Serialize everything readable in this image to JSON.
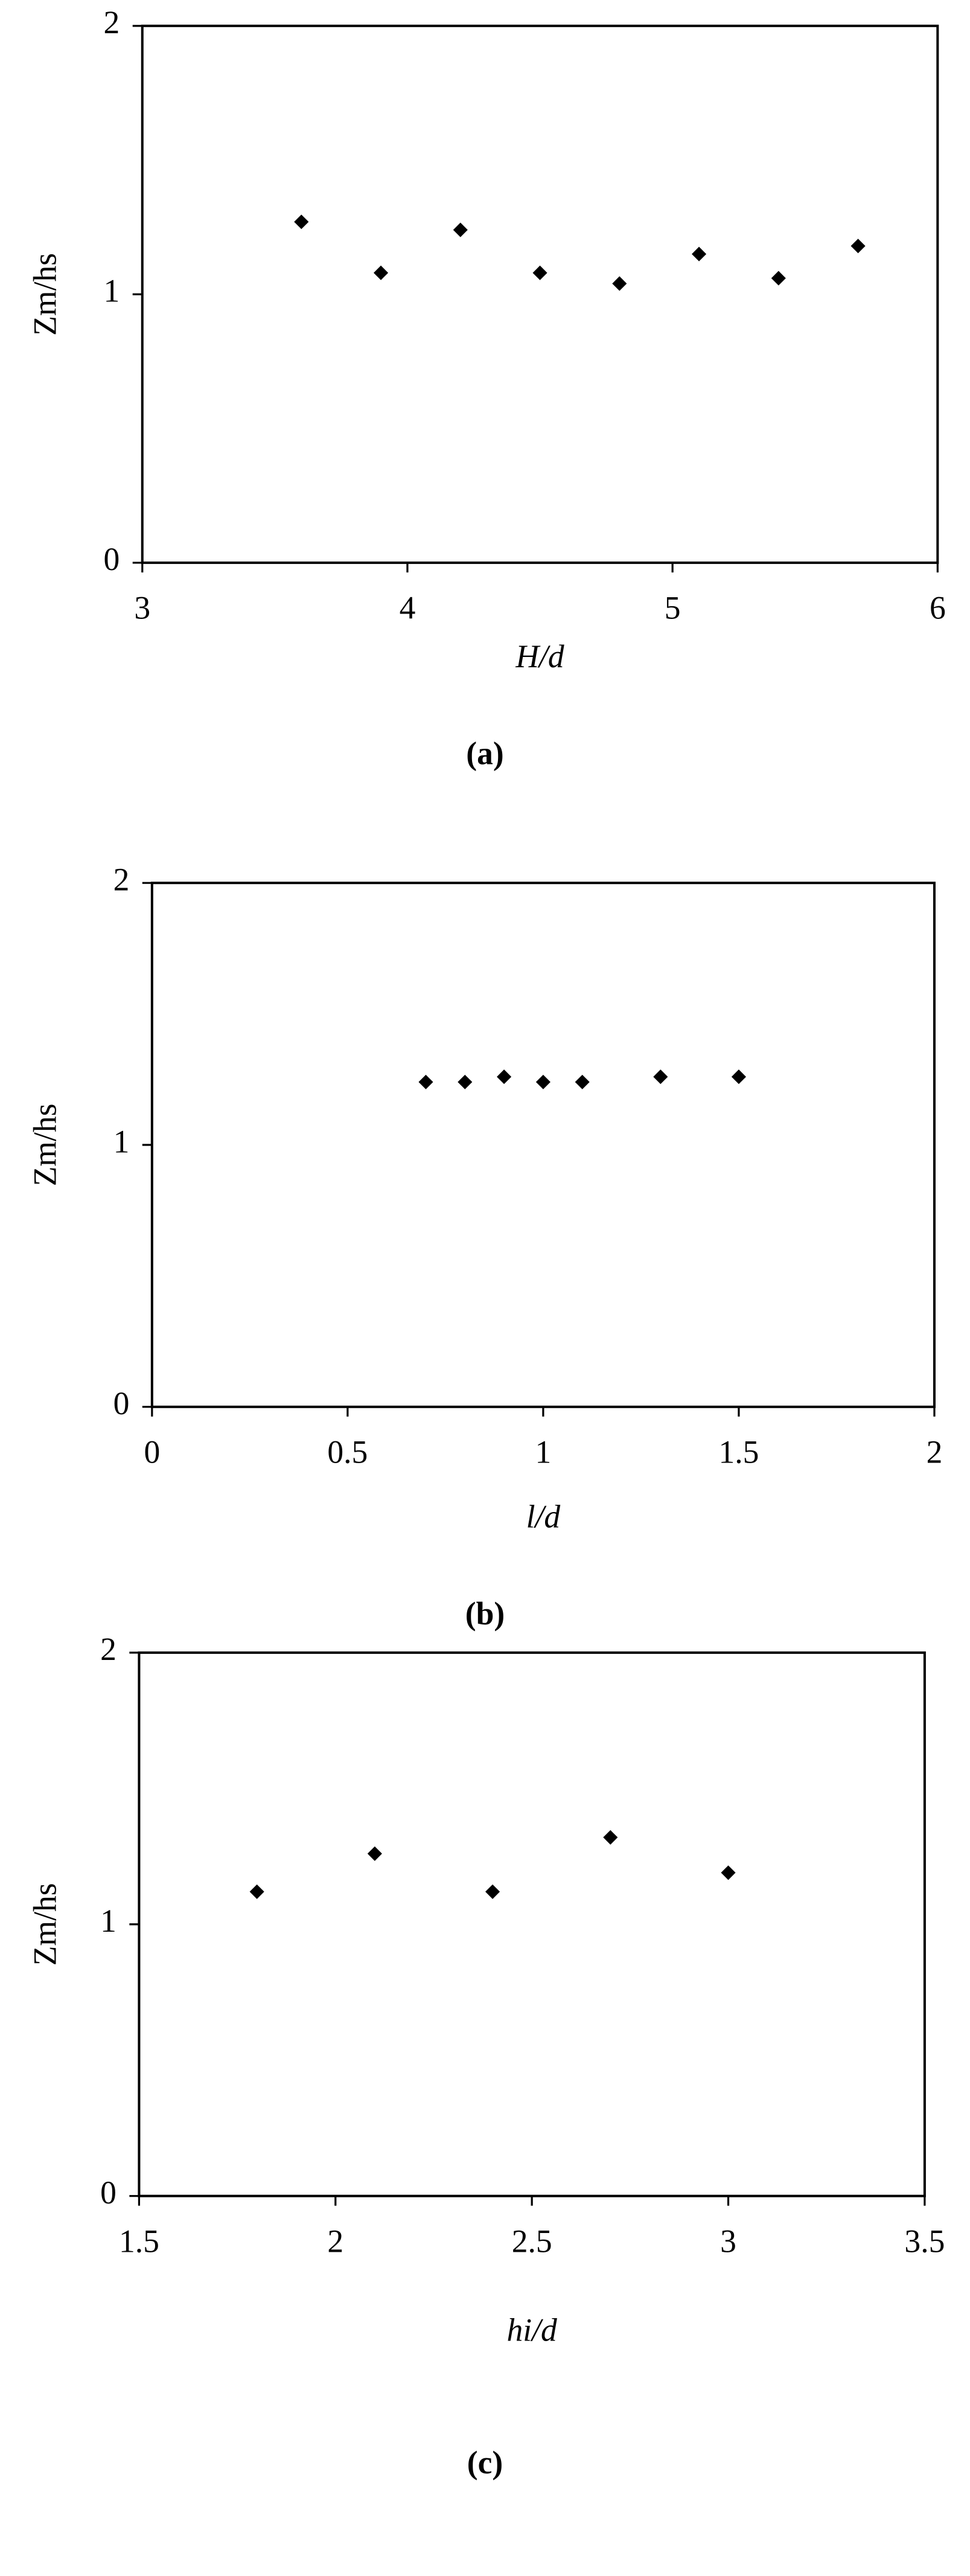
{
  "chart_data": [
    {
      "type": "scatter",
      "caption": "(a)",
      "xlabel": "H/d",
      "ylabel": "Zm/hs",
      "color": "#000000",
      "x": [
        3.6,
        3.9,
        4.2,
        4.5,
        4.8,
        5.1,
        5.4,
        5.7
      ],
      "values": [
        1.27,
        1.08,
        1.24,
        1.08,
        1.04,
        1.15,
        1.06,
        1.18
      ],
      "xlim": [
        3,
        6
      ],
      "xticks": [
        3,
        4,
        5,
        6
      ],
      "ylim": [
        0,
        2
      ],
      "yticks": [
        0,
        1,
        2
      ]
    },
    {
      "type": "scatter",
      "caption": "(b)",
      "xlabel": "l/d",
      "ylabel": "Zm/hs",
      "color": "#000000",
      "x": [
        0.7,
        0.8,
        0.9,
        1.0,
        1.1,
        1.3,
        1.5
      ],
      "values": [
        1.24,
        1.24,
        1.26,
        1.24,
        1.24,
        1.26,
        1.26
      ],
      "xlim": [
        0,
        2
      ],
      "xticks": [
        0,
        0.5,
        1,
        1.5,
        2
      ],
      "ylim": [
        0,
        2
      ],
      "yticks": [
        0,
        1,
        2
      ]
    },
    {
      "type": "scatter",
      "caption": "(c)",
      "xlabel": "hi/d",
      "ylabel": "Zm/hs",
      "color": "#000000",
      "x": [
        1.8,
        2.1,
        2.4,
        2.7,
        3.0
      ],
      "values": [
        1.12,
        1.26,
        1.12,
        1.32,
        1.19
      ],
      "xlim": [
        1.5,
        3.5
      ],
      "xticks": [
        1.5,
        2,
        2.5,
        3,
        3.5
      ],
      "ylim": [
        0,
        2
      ],
      "yticks": [
        0,
        1,
        2
      ]
    }
  ]
}
